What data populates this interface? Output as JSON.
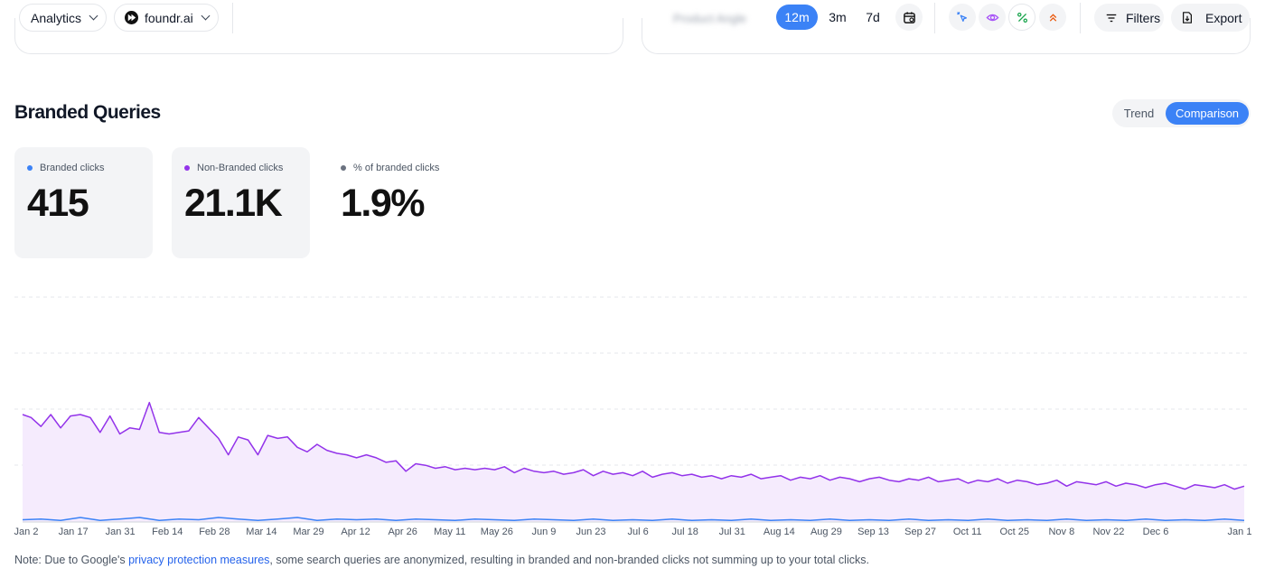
{
  "toolbar": {
    "workspace": "Analytics",
    "site": "foundr.ai",
    "blurred_label": "Product Angle",
    "ranges": [
      "12m",
      "3m",
      "7d"
    ],
    "active_range": "12m",
    "filters_label": "Filters",
    "export_label": "Export",
    "icons": [
      "calendar-icon",
      "clicks-icon",
      "impressions-icon",
      "ctr-icon",
      "position-icon",
      "filter-icon",
      "export-icon"
    ],
    "colors": {
      "accent": "#3b82f6",
      "clicks": "#3b82f6",
      "impressions": "#a855f7",
      "ctr": "#16a34a",
      "position": "#ea580c"
    }
  },
  "section": {
    "title": "Branded Queries",
    "toggle": [
      "Trend",
      "Comparison"
    ],
    "active_toggle": "Comparison"
  },
  "stats": [
    {
      "label": "Branded clicks",
      "value": "415",
      "color": "#3b82f6"
    },
    {
      "label": "Non-Branded clicks",
      "value": "21.1K",
      "color": "#9333ea"
    },
    {
      "label": "% of branded clicks",
      "value": "1.9%",
      "color": "#6b7280"
    }
  ],
  "note": {
    "prefix": "Note: Due to Google's ",
    "link": "privacy protection measures",
    "suffix": ", some search queries are anonymized, resulting in branded and non-branded clicks not summing up to your total clicks."
  },
  "chart_data": {
    "type": "line",
    "title": "",
    "xlabel": "",
    "ylabel": "",
    "grid": true,
    "legend": "none",
    "tick_labels": [
      "Jan 2",
      "Jan 17",
      "Jan 31",
      "Feb 14",
      "Feb 28",
      "Mar 14",
      "Mar 29",
      "Apr 12",
      "Apr 26",
      "May 11",
      "May 26",
      "Jun 9",
      "Jun 23",
      "Jul 6",
      "Jul 18",
      "Jul 31",
      "Aug 14",
      "Aug 29",
      "Sep 13",
      "Sep 27",
      "Oct 11",
      "Oct 25",
      "Nov 8",
      "Nov 22",
      "Dec 6",
      "Jan 1"
    ],
    "series": [
      {
        "color": "#9333ea",
        "fill": "#f5ebfd",
        "points": [
          [
            0,
            72
          ],
          [
            6,
            70
          ],
          [
            13,
            64
          ],
          [
            20,
            72
          ],
          [
            27,
            63
          ],
          [
            34,
            71
          ],
          [
            41,
            72
          ],
          [
            48,
            70
          ],
          [
            55,
            60
          ],
          [
            62,
            71
          ],
          [
            69,
            59
          ],
          [
            76,
            63
          ],
          [
            83,
            62
          ],
          [
            90,
            80
          ],
          [
            97,
            60
          ],
          [
            104,
            59
          ],
          [
            111,
            60
          ],
          [
            118,
            61
          ],
          [
            125,
            70
          ],
          [
            132,
            63
          ],
          [
            139,
            56
          ],
          [
            146,
            45
          ],
          [
            153,
            57
          ],
          [
            160,
            55
          ],
          [
            167,
            45
          ],
          [
            174,
            58
          ],
          [
            181,
            56
          ],
          [
            188,
            57
          ],
          [
            195,
            50
          ],
          [
            202,
            47
          ],
          [
            209,
            52
          ],
          [
            216,
            48
          ],
          [
            223,
            46
          ],
          [
            230,
            45
          ],
          [
            237,
            43
          ],
          [
            244,
            45
          ],
          [
            251,
            43
          ],
          [
            258,
            40
          ],
          [
            265,
            41
          ],
          [
            272,
            34
          ],
          [
            279,
            39
          ],
          [
            286,
            38
          ],
          [
            293,
            36
          ],
          [
            300,
            37
          ],
          [
            307,
            35
          ],
          [
            314,
            36
          ],
          [
            321,
            35
          ],
          [
            328,
            36
          ],
          [
            335,
            35
          ],
          [
            342,
            37
          ],
          [
            349,
            33
          ],
          [
            356,
            36
          ],
          [
            363,
            34
          ],
          [
            370,
            33
          ],
          [
            377,
            34
          ],
          [
            384,
            32
          ],
          [
            391,
            33
          ],
          [
            398,
            35
          ],
          [
            405,
            31
          ],
          [
            412,
            34
          ],
          [
            419,
            32
          ],
          [
            426,
            33
          ],
          [
            433,
            31
          ],
          [
            440,
            34
          ],
          [
            447,
            30
          ],
          [
            454,
            32
          ],
          [
            461,
            33
          ],
          [
            468,
            31
          ],
          [
            475,
            32
          ],
          [
            482,
            30
          ],
          [
            489,
            31
          ],
          [
            496,
            29
          ],
          [
            503,
            31
          ],
          [
            510,
            30
          ],
          [
            517,
            32
          ],
          [
            524,
            29
          ],
          [
            531,
            30
          ],
          [
            538,
            31
          ],
          [
            545,
            28
          ],
          [
            552,
            30
          ],
          [
            559,
            29
          ],
          [
            566,
            31
          ],
          [
            573,
            28
          ],
          [
            580,
            30
          ],
          [
            587,
            29
          ],
          [
            594,
            27
          ],
          [
            601,
            29
          ],
          [
            608,
            30
          ],
          [
            615,
            28
          ],
          [
            622,
            27
          ],
          [
            629,
            29
          ],
          [
            636,
            28
          ],
          [
            643,
            30
          ],
          [
            650,
            27
          ],
          [
            657,
            28
          ],
          [
            664,
            29
          ],
          [
            671,
            26
          ],
          [
            678,
            28
          ],
          [
            685,
            27
          ],
          [
            692,
            29
          ],
          [
            699,
            26
          ],
          [
            706,
            28
          ],
          [
            713,
            27
          ],
          [
            720,
            25
          ],
          [
            727,
            26
          ],
          [
            734,
            28
          ],
          [
            741,
            24
          ],
          [
            748,
            27
          ],
          [
            755,
            26
          ],
          [
            762,
            25
          ],
          [
            769,
            27
          ],
          [
            776,
            24
          ],
          [
            783,
            26
          ],
          [
            790,
            25
          ],
          [
            797,
            23
          ],
          [
            804,
            25
          ],
          [
            811,
            26
          ],
          [
            818,
            24
          ],
          [
            825,
            22
          ],
          [
            832,
            25
          ],
          [
            839,
            24
          ],
          [
            846,
            23
          ],
          [
            853,
            25
          ],
          [
            860,
            22
          ],
          [
            867,
            24
          ]
        ]
      },
      {
        "color": "#3b82f6",
        "points": [
          [
            0,
            1.5
          ],
          [
            13,
            2
          ],
          [
            27,
            1
          ],
          [
            41,
            3
          ],
          [
            55,
            1
          ],
          [
            69,
            2
          ],
          [
            83,
            3
          ],
          [
            97,
            1
          ],
          [
            111,
            2
          ],
          [
            125,
            1.5
          ],
          [
            139,
            3
          ],
          [
            153,
            2
          ],
          [
            167,
            1
          ],
          [
            181,
            2
          ],
          [
            195,
            3
          ],
          [
            209,
            1
          ],
          [
            223,
            2
          ],
          [
            237,
            1.5
          ],
          [
            251,
            2
          ],
          [
            265,
            1
          ],
          [
            279,
            2
          ],
          [
            293,
            1.5
          ],
          [
            307,
            1
          ],
          [
            321,
            2
          ],
          [
            335,
            1.5
          ],
          [
            349,
            1
          ],
          [
            363,
            2
          ],
          [
            377,
            1.5
          ],
          [
            391,
            1
          ],
          [
            405,
            2
          ],
          [
            419,
            1
          ],
          [
            433,
            1.5
          ],
          [
            447,
            1
          ],
          [
            461,
            2
          ],
          [
            475,
            1
          ],
          [
            489,
            1.5
          ],
          [
            503,
            1
          ],
          [
            517,
            2
          ],
          [
            531,
            1
          ],
          [
            545,
            1.5
          ],
          [
            559,
            1
          ],
          [
            573,
            2
          ],
          [
            587,
            1
          ],
          [
            601,
            1.5
          ],
          [
            615,
            1
          ],
          [
            629,
            2
          ],
          [
            643,
            1
          ],
          [
            657,
            1.5
          ],
          [
            671,
            1
          ],
          [
            685,
            2
          ],
          [
            699,
            1
          ],
          [
            713,
            1.5
          ],
          [
            727,
            1
          ],
          [
            741,
            2
          ],
          [
            755,
            1
          ],
          [
            769,
            1.5
          ],
          [
            783,
            1
          ],
          [
            797,
            2
          ],
          [
            811,
            1
          ],
          [
            825,
            1.5
          ],
          [
            839,
            1
          ],
          [
            853,
            2
          ],
          [
            867,
            1
          ]
        ]
      }
    ],
    "x": {
      "min": 0,
      "max": 867
    },
    "ylim": [
      0,
      150
    ]
  }
}
